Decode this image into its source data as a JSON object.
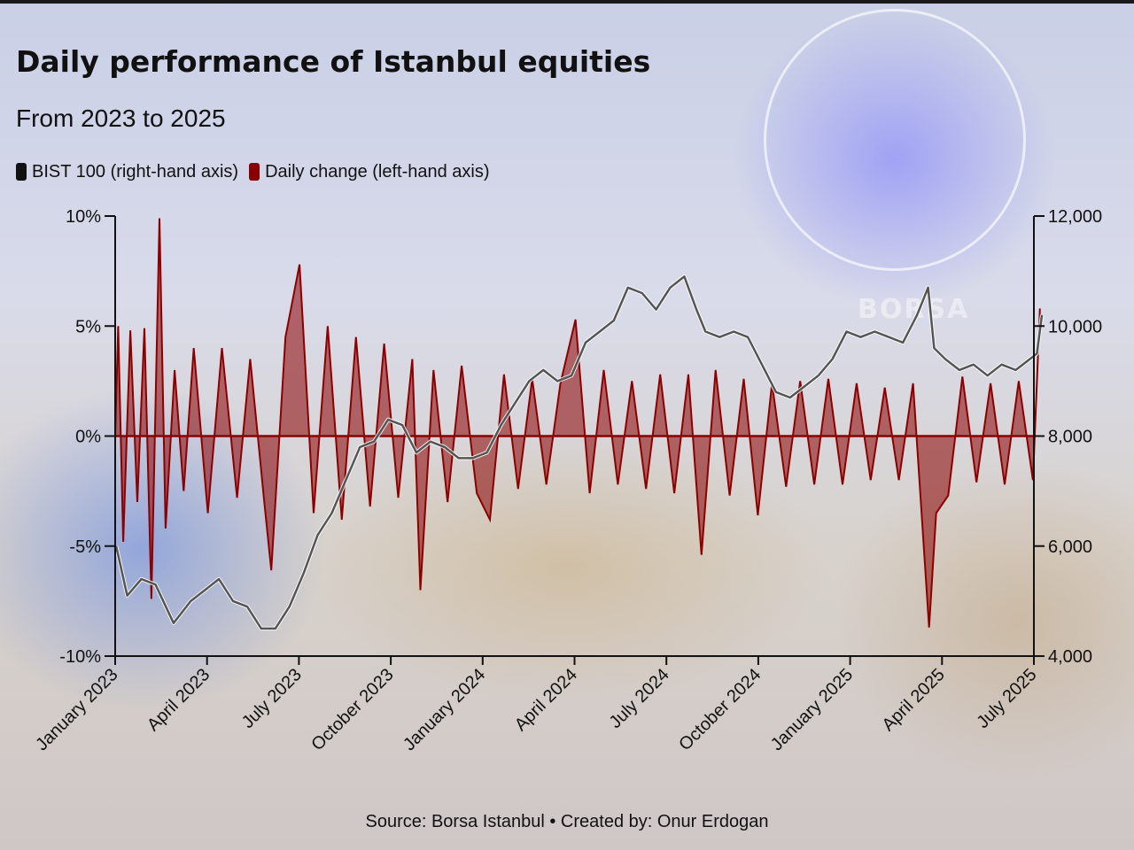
{
  "title": "Daily performance of Istanbul equities",
  "subtitle": "From 2023 to 2025",
  "source": "Source: Borsa Istanbul • Created by: Onur Erdogan",
  "background": {
    "brand_text": "BORSA"
  },
  "colors": {
    "bist100": "#555555",
    "daily_change": "#8b0000",
    "axis": "#111111"
  },
  "legend": [
    {
      "label": "BIST 100 (right-hand axis)",
      "color": "#111111"
    },
    {
      "label": "Daily change (left-hand axis)",
      "color": "#8b0000"
    }
  ],
  "chart_data": {
    "type": "line",
    "x_ticks": [
      "January 2023",
      "April 2023",
      "July 2023",
      "October 2023",
      "January 2024",
      "April 2024",
      "July 2024",
      "October 2024",
      "January 2025",
      "April 2025",
      "July 2025"
    ],
    "left_axis": {
      "ylim": [
        -10,
        10
      ],
      "ticks": [
        "10%",
        "5%",
        "0%",
        "-5%",
        "-10%"
      ],
      "tick_values": [
        10,
        5,
        0,
        -5,
        -10
      ]
    },
    "right_axis": {
      "ylim": [
        4000,
        12000
      ],
      "ticks": [
        "12,000",
        "10,000",
        "8,000",
        "6,000",
        "4,000"
      ],
      "tick_values": [
        12000,
        10000,
        8000,
        6000,
        4000
      ]
    },
    "series": [
      {
        "name": "BIST 100 (right-hand axis)",
        "axis": "right",
        "points": [
          [
            "2023-01-02",
            6000
          ],
          [
            "2023-01-13",
            5100
          ],
          [
            "2023-01-27",
            5400
          ],
          [
            "2023-02-10",
            5300
          ],
          [
            "2023-02-28",
            4600
          ],
          [
            "2023-03-17",
            5000
          ],
          [
            "2023-03-31",
            5200
          ],
          [
            "2023-04-14",
            5400
          ],
          [
            "2023-04-28",
            5000
          ],
          [
            "2023-05-12",
            4900
          ],
          [
            "2023-05-26",
            4500
          ],
          [
            "2023-06-09",
            4500
          ],
          [
            "2023-06-23",
            4900
          ],
          [
            "2023-07-07",
            5500
          ],
          [
            "2023-07-21",
            6200
          ],
          [
            "2023-08-04",
            6600
          ],
          [
            "2023-08-18",
            7200
          ],
          [
            "2023-09-01",
            7800
          ],
          [
            "2023-09-15",
            7900
          ],
          [
            "2023-09-29",
            8300
          ],
          [
            "2023-10-13",
            8200
          ],
          [
            "2023-10-27",
            7700
          ],
          [
            "2023-11-10",
            7900
          ],
          [
            "2023-11-24",
            7800
          ],
          [
            "2023-12-08",
            7600
          ],
          [
            "2023-12-22",
            7600
          ],
          [
            "2024-01-05",
            7700
          ],
          [
            "2024-01-19",
            8200
          ],
          [
            "2024-02-02",
            8600
          ],
          [
            "2024-02-16",
            9000
          ],
          [
            "2024-03-01",
            9200
          ],
          [
            "2024-03-15",
            9000
          ],
          [
            "2024-03-29",
            9100
          ],
          [
            "2024-04-12",
            9700
          ],
          [
            "2024-04-26",
            9900
          ],
          [
            "2024-05-10",
            10100
          ],
          [
            "2024-05-24",
            10700
          ],
          [
            "2024-06-07",
            10600
          ],
          [
            "2024-06-21",
            10300
          ],
          [
            "2024-07-05",
            10700
          ],
          [
            "2024-07-19",
            10900
          ],
          [
            "2024-07-31",
            10300
          ],
          [
            "2024-08-09",
            9900
          ],
          [
            "2024-08-23",
            9800
          ],
          [
            "2024-09-06",
            9900
          ],
          [
            "2024-09-20",
            9800
          ],
          [
            "2024-10-04",
            9300
          ],
          [
            "2024-10-18",
            8800
          ],
          [
            "2024-11-01",
            8700
          ],
          [
            "2024-11-15",
            8900
          ],
          [
            "2024-11-29",
            9100
          ],
          [
            "2024-12-13",
            9400
          ],
          [
            "2024-12-27",
            9900
          ],
          [
            "2025-01-10",
            9800
          ],
          [
            "2025-01-24",
            9900
          ],
          [
            "2025-02-07",
            9800
          ],
          [
            "2025-02-21",
            9700
          ],
          [
            "2025-03-07",
            10200
          ],
          [
            "2025-03-18",
            10700
          ],
          [
            "2025-03-24",
            9600
          ],
          [
            "2025-04-04",
            9400
          ],
          [
            "2025-04-18",
            9200
          ],
          [
            "2025-05-02",
            9300
          ],
          [
            "2025-05-16",
            9100
          ],
          [
            "2025-05-30",
            9300
          ],
          [
            "2025-06-13",
            9200
          ],
          [
            "2025-06-27",
            9400
          ],
          [
            "2025-07-04",
            9500
          ],
          [
            "2025-07-09",
            10200
          ]
        ]
      },
      {
        "name": "Daily change (left-hand axis)",
        "axis": "left",
        "type": "area",
        "points": [
          [
            "2023-01-04",
            5.0
          ],
          [
            "2023-01-09",
            -4.8
          ],
          [
            "2023-01-16",
            4.8
          ],
          [
            "2023-01-23",
            -3.0
          ],
          [
            "2023-01-30",
            4.9
          ],
          [
            "2023-02-06",
            -7.4
          ],
          [
            "2023-02-14",
            9.9
          ],
          [
            "2023-02-20",
            -4.2
          ],
          [
            "2023-03-01",
            3.0
          ],
          [
            "2023-03-10",
            -2.5
          ],
          [
            "2023-03-20",
            4.0
          ],
          [
            "2023-04-03",
            -3.5
          ],
          [
            "2023-04-17",
            4.0
          ],
          [
            "2023-05-02",
            -2.8
          ],
          [
            "2023-05-15",
            3.5
          ],
          [
            "2023-05-29",
            -3.0
          ],
          [
            "2023-06-05",
            -6.1
          ],
          [
            "2023-06-19",
            4.5
          ],
          [
            "2023-07-03",
            7.8
          ],
          [
            "2023-07-17",
            -3.5
          ],
          [
            "2023-07-31",
            5.0
          ],
          [
            "2023-08-14",
            -3.8
          ],
          [
            "2023-08-28",
            4.5
          ],
          [
            "2023-09-11",
            -3.2
          ],
          [
            "2023-09-25",
            4.2
          ],
          [
            "2023-10-09",
            -2.8
          ],
          [
            "2023-10-23",
            3.5
          ],
          [
            "2023-10-31",
            -7.0
          ],
          [
            "2023-11-13",
            3.0
          ],
          [
            "2023-11-27",
            -3.0
          ],
          [
            "2023-12-11",
            3.2
          ],
          [
            "2023-12-26",
            -2.6
          ],
          [
            "2024-01-08",
            -3.8
          ],
          [
            "2024-01-22",
            2.8
          ],
          [
            "2024-02-05",
            -2.4
          ],
          [
            "2024-02-19",
            2.6
          ],
          [
            "2024-03-04",
            -2.2
          ],
          [
            "2024-03-18",
            2.4
          ],
          [
            "2024-04-02",
            5.3
          ],
          [
            "2024-04-16",
            -2.6
          ],
          [
            "2024-04-30",
            3.0
          ],
          [
            "2024-05-14",
            -2.2
          ],
          [
            "2024-05-28",
            2.5
          ],
          [
            "2024-06-11",
            -2.4
          ],
          [
            "2024-06-25",
            2.8
          ],
          [
            "2024-07-09",
            -2.6
          ],
          [
            "2024-07-23",
            2.8
          ],
          [
            "2024-08-05",
            -5.4
          ],
          [
            "2024-08-19",
            3.0
          ],
          [
            "2024-09-02",
            -2.7
          ],
          [
            "2024-09-16",
            2.6
          ],
          [
            "2024-09-30",
            -3.6
          ],
          [
            "2024-10-14",
            2.4
          ],
          [
            "2024-10-28",
            -2.3
          ],
          [
            "2024-11-11",
            2.5
          ],
          [
            "2024-11-25",
            -2.2
          ],
          [
            "2024-12-09",
            2.6
          ],
          [
            "2024-12-23",
            -2.2
          ],
          [
            "2025-01-06",
            2.4
          ],
          [
            "2025-01-20",
            -2.0
          ],
          [
            "2025-02-03",
            2.2
          ],
          [
            "2025-02-17",
            -2.0
          ],
          [
            "2025-03-03",
            2.4
          ],
          [
            "2025-03-19",
            -8.7
          ],
          [
            "2025-03-26",
            -3.5
          ],
          [
            "2025-04-07",
            -2.7
          ],
          [
            "2025-04-21",
            2.7
          ],
          [
            "2025-05-05",
            -2.1
          ],
          [
            "2025-05-19",
            2.4
          ],
          [
            "2025-06-02",
            -2.2
          ],
          [
            "2025-06-16",
            2.5
          ],
          [
            "2025-06-30",
            -2.0
          ],
          [
            "2025-07-07",
            5.8
          ]
        ]
      }
    ],
    "grid": false,
    "legend_position": "top-left"
  }
}
